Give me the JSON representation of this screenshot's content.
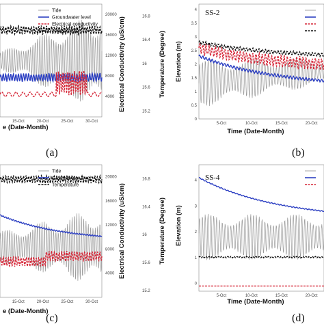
{
  "figure": {
    "panels": [
      {
        "letter": "(a)"
      },
      {
        "letter": "(b)"
      },
      {
        "letter": "(c)"
      },
      {
        "letter": "(d)"
      }
    ]
  },
  "chart_data": [
    {
      "id": "a",
      "type": "line",
      "site_label": "",
      "xlabel": "e (Date-Month)",
      "ylabel": "",
      "y2label": "Electrical Conductivity (uS/cm)",
      "y3label": "Temperature (Degree)",
      "x_ticks": [
        "15-Oct",
        "20-Oct",
        "25-Oct",
        "30-Oct"
      ],
      "y2_ticks": [
        "4000",
        "8000",
        "12000",
        "16000",
        "20000"
      ],
      "y3_ticks": [
        "15.2",
        "15.6",
        "16",
        "16.4",
        "16.8"
      ],
      "y3lim": [
        15.1,
        17.0
      ],
      "legend": [
        "Tide",
        "Groundwater level",
        "Electrical conductivity",
        "Temperature"
      ],
      "series": [
        {
          "name": "Tide",
          "style": "tide",
          "color": "#9a9a9a",
          "mean": 0.5,
          "amp_start": 0.08,
          "amp_end": 0.45,
          "phase": 0.3
        },
        {
          "name": "Groundwater level",
          "style": "solid",
          "color": "#2c3fc2",
          "mean": 0.35,
          "amp": 0.04,
          "slope": 0.0
        },
        {
          "name": "Electrical conductivity",
          "style": "dashed",
          "color": "#d6293a",
          "segments": "osc-mid"
        },
        {
          "name": "Temperature",
          "style": "dashed",
          "color": "#111111",
          "mean": 0.77,
          "amp": 0.04,
          "slope": 0.0
        }
      ]
    },
    {
      "id": "b",
      "type": "line",
      "site_label": "SS-2",
      "xlabel": "Time (Date-Month)",
      "ylabel": "Elevation (m)",
      "x_ticks": [
        "5-Oct",
        "10-Oct",
        "15-Oct",
        "20-Oct"
      ],
      "y_ticks": [
        "0",
        "0.5",
        "1",
        "1.5",
        "2",
        "2.5",
        "3",
        "3.5",
        "4"
      ],
      "ylim": [
        0,
        4.2
      ],
      "legend": [
        "",
        "",
        "",
        ""
      ],
      "series": [
        {
          "name": "Tide",
          "style": "tide",
          "color": "#9a9a9a",
          "y_start": 1.3,
          "y_end": 1.75,
          "amp_start": 0.9,
          "amp_end": 0.5,
          "phase": 0.0
        },
        {
          "name": "Groundwater level",
          "style": "solid",
          "color": "#2c3fc2",
          "y_start": 2.3,
          "y_end": 1.4,
          "amp": 0.06
        },
        {
          "name": "Electrical conductivity",
          "style": "dashed",
          "color": "#d6293a",
          "y_start": 2.6,
          "y_end": 2.0,
          "amp": 0.25
        },
        {
          "name": "Temperature",
          "style": "dashed",
          "color": "#111111",
          "y_start": 2.8,
          "y_end": 2.35,
          "amp": 0.08
        }
      ]
    },
    {
      "id": "c",
      "type": "line",
      "site_label": "",
      "xlabel": "e (Date-Month)",
      "ylabel": "",
      "y2label": "Electrical Conductivity (uS/cm)",
      "y3label": "Temperature (Degree)",
      "x_ticks": [
        "15-Oct",
        "20-Oct",
        "25-Oct",
        "30-Oct"
      ],
      "y2_ticks": [
        "4000",
        "8000",
        "12000",
        "16000",
        "20000"
      ],
      "y3_ticks": [
        "15.2",
        "15.6",
        "16",
        "16.4",
        "16.8"
      ],
      "y3lim": [
        15.1,
        17.0
      ],
      "legend": [
        "Tide",
        "Groundwater level",
        "Temperature"
      ],
      "series": [
        {
          "name": "Tide",
          "style": "tide",
          "color": "#9a9a9a",
          "mean": 0.38,
          "amp_start": 0.12,
          "amp_end": 0.3,
          "phase": 0.6
        },
        {
          "name": "Groundwater level",
          "style": "solid",
          "color": "#2c3fc2",
          "y_start": 0.62,
          "y_end": 0.46,
          "amp": 0.005
        },
        {
          "name": "Electrical conductivity",
          "style": "dashed",
          "color": "#d6293a",
          "segments": "step"
        },
        {
          "name": "Temperature",
          "style": "dashed",
          "color": "#111111",
          "mean": 0.89,
          "amp": 0.03,
          "slope": 0.0
        }
      ]
    },
    {
      "id": "d",
      "type": "line",
      "site_label": "SS-4",
      "xlabel": "Time (Date-Month)",
      "ylabel": "Elevation (m)",
      "x_ticks": [
        "5-Oct",
        "10-Oct",
        "15-Oct",
        "20-Oct"
      ],
      "y_ticks": [
        "0",
        "1",
        "2",
        "3",
        "4"
      ],
      "ylim": [
        -0.3,
        4.6
      ],
      "legend": [
        "",
        "",
        ""
      ],
      "series": [
        {
          "name": "Tide",
          "style": "tide",
          "color": "#9a9a9a",
          "y_start": 1.8,
          "y_end": 1.8,
          "amp_start": 0.9,
          "amp_end": 0.9,
          "phase": 0.2
        },
        {
          "name": "Groundwater level",
          "style": "solid",
          "color": "#2c3fc2",
          "y_start": 4.1,
          "y_end": 2.8,
          "amp": 0.02
        },
        {
          "name": "Electrical conductivity",
          "style": "dashed",
          "color": "#d6293a",
          "y_start": -0.1,
          "y_end": -0.1,
          "amp": 0.0
        },
        {
          "name": "Temperature",
          "style": "dashed",
          "color": "#111111",
          "y_start": 1.02,
          "y_end": 1.02,
          "amp": 0.03
        }
      ]
    }
  ]
}
